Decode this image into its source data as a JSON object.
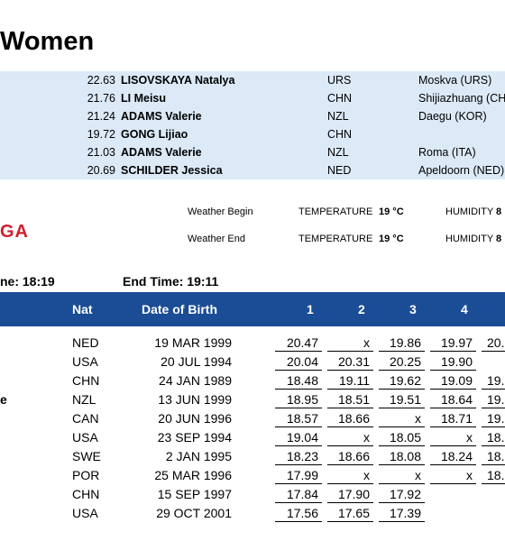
{
  "event": {
    "title": "Women"
  },
  "records": [
    {
      "mark": "22.63",
      "name": "LISOVSKAYA Natalya",
      "nat": "URS",
      "venue": "Moskva (URS)"
    },
    {
      "mark": "21.76",
      "name": "LI Meisu",
      "nat": "CHN",
      "venue": "Shijiazhuang (CHN"
    },
    {
      "mark": "21.24",
      "name": "ADAMS Valerie",
      "nat": "NZL",
      "venue": "Daegu (KOR)"
    },
    {
      "mark": "19.72",
      "name": "GONG Lijiao",
      "nat": "CHN",
      "venue": ""
    },
    {
      "mark": "21.03",
      "name": "ADAMS Valerie",
      "nat": "NZL",
      "venue": "Roma (ITA)"
    },
    {
      "mark": "20.69",
      "name": "SCHILDER Jessica",
      "nat": "NED",
      "venue": "Apeldoorn (NED)"
    }
  ],
  "logo_fragment": "GA",
  "weather": {
    "begin_label": "Weather Begin",
    "end_label": "Weather End",
    "temp_label": "TEMPERATURE",
    "begin_temp": "19 °C",
    "end_temp": "19 °C",
    "hum_label": "HUMIDITY",
    "begin_hum": "8",
    "end_hum": "8"
  },
  "times": {
    "start": "ne: 18:19",
    "end": "End Time: 19:11"
  },
  "table": {
    "headers": {
      "nat": "Nat",
      "dob": "Date of Birth",
      "r1": "1",
      "r2": "2",
      "r3": "3",
      "r4": "4"
    },
    "rows": [
      {
        "name": "",
        "nat": "NED",
        "dob": "19 MAR 1999",
        "a": "20.47",
        "b": "x",
        "c": "19.86",
        "d": "19.97",
        "e": "20."
      },
      {
        "name": "",
        "nat": "USA",
        "dob": "20 JUL 1994",
        "a": "20.04",
        "b": "20.31",
        "c": "20.25",
        "d": "19.90",
        "e": ""
      },
      {
        "name": "",
        "nat": "CHN",
        "dob": "24 JAN 1989",
        "a": "18.48",
        "b": "19.11",
        "c": "19.62",
        "d": "19.09",
        "e": "19."
      },
      {
        "name": "e",
        "nat": "NZL",
        "dob": "13 JUN 1999",
        "a": "18.95",
        "b": "18.51",
        "c": "19.51",
        "d": "18.64",
        "e": "19."
      },
      {
        "name": "",
        "nat": "CAN",
        "dob": "20 JUN 1996",
        "a": "18.57",
        "b": "18.66",
        "c": "x",
        "d": "18.71",
        "e": "19."
      },
      {
        "name": "",
        "nat": "USA",
        "dob": "23 SEP 1994",
        "a": "19.04",
        "b": "x",
        "c": "18.05",
        "d": "x",
        "e": "18."
      },
      {
        "name": "",
        "nat": "SWE",
        "dob": "2 JAN 1995",
        "a": "18.23",
        "b": "18.66",
        "c": "18.08",
        "d": "18.24",
        "e": "18."
      },
      {
        "name": "",
        "nat": "POR",
        "dob": "25 MAR 1996",
        "a": "17.99",
        "b": "x",
        "c": "x",
        "d": "x",
        "e": "18."
      },
      {
        "name": "",
        "nat": "CHN",
        "dob": "15 SEP 1997",
        "a": "17.84",
        "b": "17.90",
        "c": "17.92",
        "d": "",
        "e": ""
      },
      {
        "name": "",
        "nat": "USA",
        "dob": "29 OCT 2001",
        "a": "17.56",
        "b": "17.65",
        "c": "17.39",
        "d": "",
        "e": ""
      }
    ]
  },
  "colors": {
    "header_bg": "#1a4d95",
    "records_bg": "#dce9f7",
    "logo": "#d0202f"
  }
}
